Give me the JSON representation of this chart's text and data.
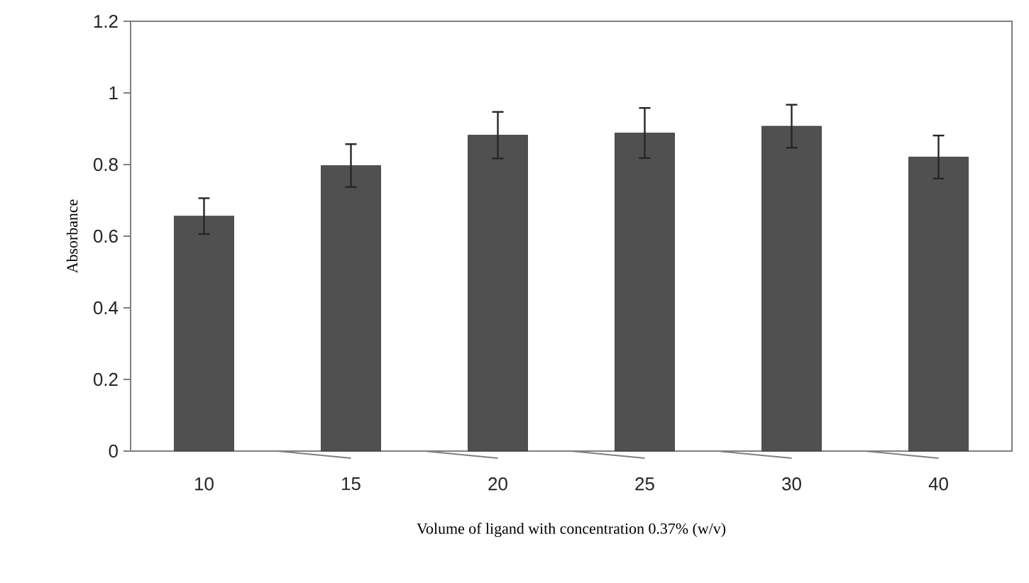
{
  "chart_data": {
    "type": "bar",
    "xlabel": "Volume of ligand with concentration 0.37% (w/v)",
    "ylabel": "Absorbance",
    "categories": [
      "10",
      "15",
      "20",
      "25",
      "30",
      "40"
    ],
    "values": [
      0.656,
      0.797,
      0.882,
      0.888,
      0.907,
      0.821
    ],
    "errors": [
      0.05,
      0.06,
      0.065,
      0.07,
      0.06,
      0.06
    ],
    "color": "#505050",
    "ylim": [
      0,
      1.2
    ],
    "yticks": [
      0,
      0.2,
      0.4,
      0.6,
      0.8,
      1,
      1.2
    ],
    "grid": false
  }
}
